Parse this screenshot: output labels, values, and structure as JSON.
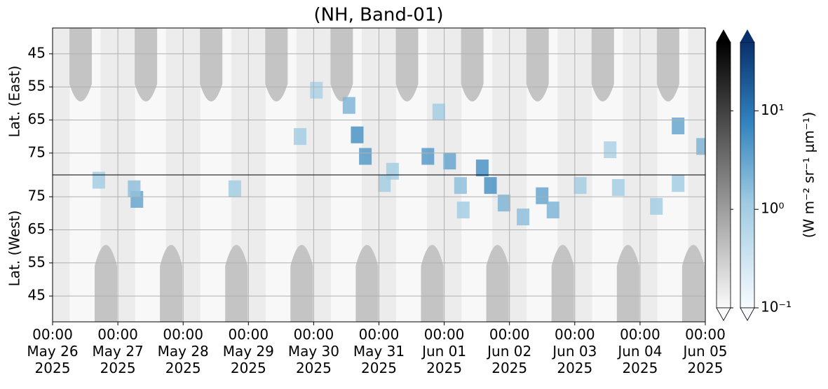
{
  "chart_data": {
    "type": "heatmap",
    "title": "(NH, Band-01)",
    "xlim": [
      "2025-05-26T00:00",
      "2025-06-05T00:00"
    ],
    "xticks": [
      {
        "value": "2025-05-26T00:00",
        "label": "00:00\nMay 26\n2025"
      },
      {
        "value": "2025-05-27T00:00",
        "label": "00:00\nMay 27\n2025"
      },
      {
        "value": "2025-05-28T00:00",
        "label": "00:00\nMay 28\n2025"
      },
      {
        "value": "2025-05-29T00:00",
        "label": "00:00\nMay 29\n2025"
      },
      {
        "value": "2025-05-30T00:00",
        "label": "00:00\nMay 30\n2025"
      },
      {
        "value": "2025-05-31T00:00",
        "label": "00:00\nMay 31\n2025"
      },
      {
        "value": "2025-06-01T00:00",
        "label": "00:00\nJun 01\n2025"
      },
      {
        "value": "2025-06-02T00:00",
        "label": "00:00\nJun 02\n2025"
      },
      {
        "value": "2025-06-03T00:00",
        "label": "00:00\nJun 03\n2025"
      },
      {
        "value": "2025-06-04T00:00",
        "label": "00:00\nJun 04\n2025"
      },
      {
        "value": "2025-06-05T00:00",
        "label": "00:00\nJun 05\n2025"
      }
    ],
    "grid": true,
    "panels": [
      {
        "ylabel": "Lat. (East)",
        "ylim": [
          37.2,
          81.6
        ],
        "yticks": [
          45,
          55,
          65,
          75
        ],
        "x": [
          "2025-05-29T19:00",
          "2025-05-30T16:00",
          "2025-05-30T13:00",
          "2025-05-30T19:00",
          "2025-05-31T18:00",
          "2025-06-01T02:00",
          "2025-06-01T14:00",
          "2025-05-31T05:00",
          "2025-05-31T22:00",
          "2025-06-04T14:00",
          "2025-06-04T23:00",
          "2025-06-03T13:00",
          "2025-05-30T01:00"
        ],
        "lat": [
          70,
          69.5,
          60.6,
          76,
          76,
          77.4,
          79.5,
          80.5,
          62.6,
          66.8,
          73,
          74,
          56
        ],
        "values": [
          1,
          5,
          2,
          4,
          4,
          3,
          5,
          1,
          1,
          3,
          2,
          0.8,
          0.8
        ]
      },
      {
        "ylabel": "Lat. (West)",
        "ylim": [
          81.6,
          37.2
        ],
        "yticks": [
          75,
          65,
          55,
          45
        ],
        "x": [
          "2025-05-26T17:00",
          "2025-05-27T07:00",
          "2025-05-27T06:00",
          "2025-05-28T19:00",
          "2025-05-31T02:00",
          "2025-06-01T06:00",
          "2025-06-01T17:00",
          "2025-06-01T22:00",
          "2025-06-02T05:00",
          "2025-06-02T12:00",
          "2025-06-02T16:00",
          "2025-06-03T02:00",
          "2025-06-03T16:00",
          "2025-06-04T06:00",
          "2025-06-04T14:00",
          "2025-06-01T07:00"
        ],
        "lat": [
          80,
          74.2,
          77.4,
          77.4,
          79,
          78.4,
          78.4,
          73.1,
          68.9,
          75.3,
          71,
          78.4,
          77.8,
          72.1,
          79,
          71
        ],
        "values": [
          1,
          3,
          1.5,
          1,
          1,
          1.5,
          5,
          2,
          1.5,
          3,
          2,
          1,
          1,
          1,
          1,
          1
        ]
      }
    ],
    "colorbar": {
      "label": "(W m⁻² sr⁻¹ μm⁻¹)",
      "scale": "log",
      "clim": [
        0.1,
        50
      ],
      "ticks": [
        {
          "value": 0.1,
          "label": "10⁻¹"
        },
        {
          "value": 1,
          "label": "10⁰"
        },
        {
          "value": 10,
          "label": "10¹"
        }
      ],
      "colormaps": [
        "gray",
        "Blues"
      ]
    }
  }
}
